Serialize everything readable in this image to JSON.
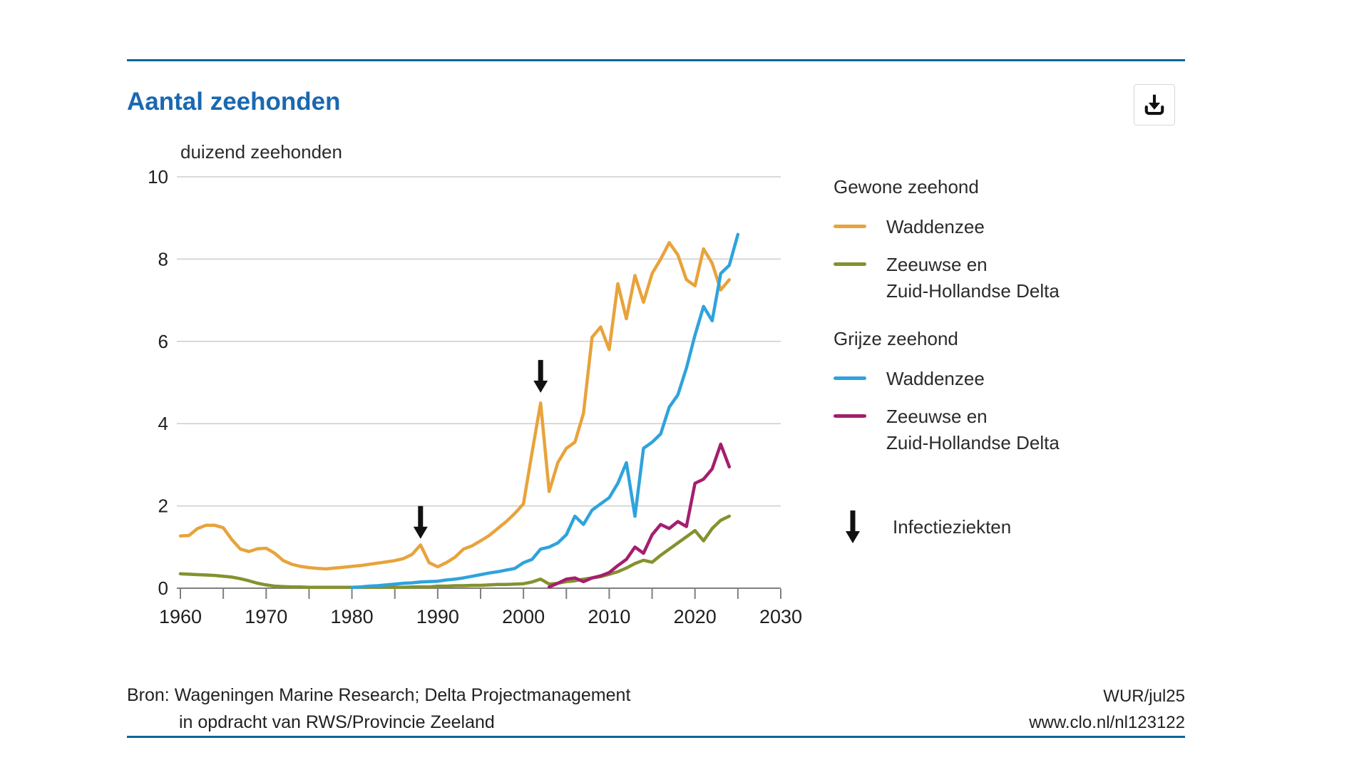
{
  "header": {
    "title": "Aantal zeehonden"
  },
  "toolbar": {
    "download_icon": "download-icon"
  },
  "chart_data": {
    "type": "line",
    "title": "Aantal zeehonden",
    "ylabel": "duizend zeehonden",
    "xlim": [
      1960,
      2030
    ],
    "ylim": [
      0,
      10
    ],
    "x_ticks": [
      1960,
      1970,
      1980,
      1990,
      2000,
      2010,
      2020,
      2030
    ],
    "x_minor_tick_step": 5,
    "y_ticks": [
      0,
      2,
      4,
      6,
      8,
      10
    ],
    "grid": "horizontal",
    "legend_position": "right",
    "series": [
      {
        "name": "Gewone zeehond Waddenzee",
        "group": "Gewone zeehond",
        "region": "Waddenzee",
        "color": "#E8A33B",
        "points": [
          [
            1960,
            1.27
          ],
          [
            1961,
            1.28
          ],
          [
            1962,
            1.45
          ],
          [
            1963,
            1.53
          ],
          [
            1964,
            1.53
          ],
          [
            1965,
            1.47
          ],
          [
            1966,
            1.18
          ],
          [
            1967,
            0.95
          ],
          [
            1968,
            0.89
          ],
          [
            1969,
            0.96
          ],
          [
            1970,
            0.97
          ],
          [
            1971,
            0.85
          ],
          [
            1972,
            0.67
          ],
          [
            1973,
            0.58
          ],
          [
            1974,
            0.53
          ],
          [
            1975,
            0.5
          ],
          [
            1976,
            0.48
          ],
          [
            1977,
            0.47
          ],
          [
            1978,
            0.49
          ],
          [
            1979,
            0.51
          ],
          [
            1980,
            0.53
          ],
          [
            1981,
            0.55
          ],
          [
            1982,
            0.58
          ],
          [
            1983,
            0.61
          ],
          [
            1984,
            0.64
          ],
          [
            1985,
            0.67
          ],
          [
            1986,
            0.72
          ],
          [
            1987,
            0.82
          ],
          [
            1988,
            1.05
          ],
          [
            1989,
            0.62
          ],
          [
            1990,
            0.52
          ],
          [
            1991,
            0.62
          ],
          [
            1992,
            0.75
          ],
          [
            1993,
            0.95
          ],
          [
            1994,
            1.03
          ],
          [
            1995,
            1.15
          ],
          [
            1996,
            1.28
          ],
          [
            1997,
            1.45
          ],
          [
            1998,
            1.62
          ],
          [
            1999,
            1.82
          ],
          [
            2000,
            2.05
          ],
          [
            2001,
            3.3
          ],
          [
            2002,
            4.5
          ],
          [
            2003,
            2.35
          ],
          [
            2004,
            3.05
          ],
          [
            2005,
            3.4
          ],
          [
            2006,
            3.55
          ],
          [
            2007,
            4.25
          ],
          [
            2008,
            6.1
          ],
          [
            2009,
            6.35
          ],
          [
            2010,
            5.8
          ],
          [
            2011,
            7.4
          ],
          [
            2012,
            6.55
          ],
          [
            2013,
            7.6
          ],
          [
            2014,
            6.95
          ],
          [
            2015,
            7.65
          ],
          [
            2016,
            8.0
          ],
          [
            2017,
            8.4
          ],
          [
            2018,
            8.1
          ],
          [
            2019,
            7.5
          ],
          [
            2020,
            7.35
          ],
          [
            2021,
            8.25
          ],
          [
            2022,
            7.9
          ],
          [
            2023,
            7.25
          ],
          [
            2024,
            7.5
          ]
        ]
      },
      {
        "name": "Gewone zeehond Zeeuwse en Zuid-Hollandse Delta",
        "group": "Gewone zeehond",
        "region": "Zeeuwse en Zuid-Hollandse Delta",
        "color": "#85912E",
        "points": [
          [
            1960,
            0.35
          ],
          [
            1961,
            0.34
          ],
          [
            1962,
            0.33
          ],
          [
            1963,
            0.32
          ],
          [
            1964,
            0.31
          ],
          [
            1965,
            0.29
          ],
          [
            1966,
            0.27
          ],
          [
            1967,
            0.23
          ],
          [
            1968,
            0.18
          ],
          [
            1969,
            0.12
          ],
          [
            1970,
            0.08
          ],
          [
            1971,
            0.05
          ],
          [
            1972,
            0.04
          ],
          [
            1973,
            0.03
          ],
          [
            1974,
            0.03
          ],
          [
            1975,
            0.02
          ],
          [
            1976,
            0.02
          ],
          [
            1977,
            0.02
          ],
          [
            1978,
            0.02
          ],
          [
            1979,
            0.02
          ],
          [
            1980,
            0.02
          ],
          [
            1981,
            0.02
          ],
          [
            1982,
            0.02
          ],
          [
            1983,
            0.02
          ],
          [
            1984,
            0.02
          ],
          [
            1985,
            0.02
          ],
          [
            1986,
            0.02
          ],
          [
            1987,
            0.03
          ],
          [
            1988,
            0.03
          ],
          [
            1989,
            0.03
          ],
          [
            1990,
            0.05
          ],
          [
            1991,
            0.05
          ],
          [
            1992,
            0.06
          ],
          [
            1993,
            0.06
          ],
          [
            1994,
            0.07
          ],
          [
            1995,
            0.07
          ],
          [
            1996,
            0.08
          ],
          [
            1997,
            0.09
          ],
          [
            1998,
            0.09
          ],
          [
            1999,
            0.1
          ],
          [
            2000,
            0.11
          ],
          [
            2001,
            0.15
          ],
          [
            2002,
            0.22
          ],
          [
            2003,
            0.1
          ],
          [
            2004,
            0.12
          ],
          [
            2005,
            0.16
          ],
          [
            2006,
            0.18
          ],
          [
            2007,
            0.22
          ],
          [
            2008,
            0.25
          ],
          [
            2009,
            0.28
          ],
          [
            2010,
            0.34
          ],
          [
            2011,
            0.4
          ],
          [
            2012,
            0.49
          ],
          [
            2013,
            0.6
          ],
          [
            2014,
            0.68
          ],
          [
            2015,
            0.63
          ],
          [
            2016,
            0.8
          ],
          [
            2017,
            0.95
          ],
          [
            2018,
            1.1
          ],
          [
            2019,
            1.25
          ],
          [
            2020,
            1.4
          ],
          [
            2021,
            1.15
          ],
          [
            2022,
            1.45
          ],
          [
            2023,
            1.65
          ],
          [
            2024,
            1.75
          ]
        ]
      },
      {
        "name": "Grijze zeehond Waddenzee",
        "group": "Grijze zeehond",
        "region": "Waddenzee",
        "color": "#2FA3DC",
        "points": [
          [
            1980,
            0.02
          ],
          [
            1981,
            0.03
          ],
          [
            1982,
            0.05
          ],
          [
            1983,
            0.06
          ],
          [
            1984,
            0.08
          ],
          [
            1985,
            0.1
          ],
          [
            1986,
            0.12
          ],
          [
            1987,
            0.13
          ],
          [
            1988,
            0.15
          ],
          [
            1989,
            0.16
          ],
          [
            1990,
            0.17
          ],
          [
            1991,
            0.2
          ],
          [
            1992,
            0.22
          ],
          [
            1993,
            0.25
          ],
          [
            1994,
            0.29
          ],
          [
            1995,
            0.33
          ],
          [
            1996,
            0.37
          ],
          [
            1997,
            0.4
          ],
          [
            1998,
            0.44
          ],
          [
            1999,
            0.48
          ],
          [
            2000,
            0.62
          ],
          [
            2001,
            0.7
          ],
          [
            2002,
            0.95
          ],
          [
            2003,
            1.0
          ],
          [
            2004,
            1.1
          ],
          [
            2005,
            1.3
          ],
          [
            2006,
            1.75
          ],
          [
            2007,
            1.55
          ],
          [
            2008,
            1.9
          ],
          [
            2009,
            2.05
          ],
          [
            2010,
            2.2
          ],
          [
            2011,
            2.55
          ],
          [
            2012,
            3.05
          ],
          [
            2013,
            1.75
          ],
          [
            2014,
            3.4
          ],
          [
            2015,
            3.55
          ],
          [
            2016,
            3.75
          ],
          [
            2017,
            4.4
          ],
          [
            2018,
            4.7
          ],
          [
            2019,
            5.35
          ],
          [
            2020,
            6.15
          ],
          [
            2021,
            6.85
          ],
          [
            2022,
            6.5
          ],
          [
            2023,
            7.65
          ],
          [
            2024,
            7.85
          ],
          [
            2025,
            8.6
          ]
        ]
      },
      {
        "name": "Grijze zeehond Zeeuwse en Zuid-Hollandse Delta",
        "group": "Grijze zeehond",
        "region": "Zeeuwse en Zuid-Hollandse Delta",
        "color": "#A51E6E",
        "points": [
          [
            2003,
            0.03
          ],
          [
            2004,
            0.12
          ],
          [
            2005,
            0.22
          ],
          [
            2006,
            0.25
          ],
          [
            2007,
            0.16
          ],
          [
            2008,
            0.25
          ],
          [
            2009,
            0.3
          ],
          [
            2010,
            0.38
          ],
          [
            2011,
            0.55
          ],
          [
            2012,
            0.7
          ],
          [
            2013,
            1.0
          ],
          [
            2014,
            0.85
          ],
          [
            2015,
            1.3
          ],
          [
            2016,
            1.55
          ],
          [
            2017,
            1.45
          ],
          [
            2018,
            1.62
          ],
          [
            2019,
            1.5
          ],
          [
            2020,
            2.55
          ],
          [
            2021,
            2.65
          ],
          [
            2022,
            2.9
          ],
          [
            2023,
            3.5
          ],
          [
            2024,
            2.95
          ]
        ]
      }
    ],
    "annotations": [
      {
        "type": "down-arrow",
        "x": 1988,
        "y_tip": 1.2,
        "meaning": "Infectieziekten"
      },
      {
        "type": "down-arrow",
        "x": 2002,
        "y_tip": 4.75,
        "meaning": "Infectieziekten"
      }
    ]
  },
  "legend": {
    "groups": [
      {
        "title": "Gewone zeehond",
        "items": [
          {
            "label_lines": [
              "Waddenzee"
            ],
            "color": "#E8A33B"
          },
          {
            "label_lines": [
              "Zeeuwse en",
              "Zuid-Hollandse Delta"
            ],
            "color": "#85912E"
          }
        ]
      },
      {
        "title": "Grijze zeehond",
        "items": [
          {
            "label_lines": [
              "Waddenzee"
            ],
            "color": "#2FA3DC"
          },
          {
            "label_lines": [
              "Zeeuwse en",
              "Zuid-Hollandse Delta"
            ],
            "color": "#A51E6E"
          }
        ]
      }
    ],
    "annotation": {
      "symbol": "down-arrow",
      "label": "Infectieziekten"
    }
  },
  "footer": {
    "source_line1": "Bron: Wageningen Marine Research; Delta Projectmanagement",
    "source_line2": "in opdracht van RWS/Provincie Zeeland",
    "credit": "WUR/jul25",
    "url": "www.clo.nl/nl123122"
  },
  "colors": {
    "title_blue": "#1A68B0",
    "rule_blue": "#01689B",
    "gridline": "#CDCDCD",
    "axis": "#7F7F7F",
    "arrow_black": "#111111"
  }
}
